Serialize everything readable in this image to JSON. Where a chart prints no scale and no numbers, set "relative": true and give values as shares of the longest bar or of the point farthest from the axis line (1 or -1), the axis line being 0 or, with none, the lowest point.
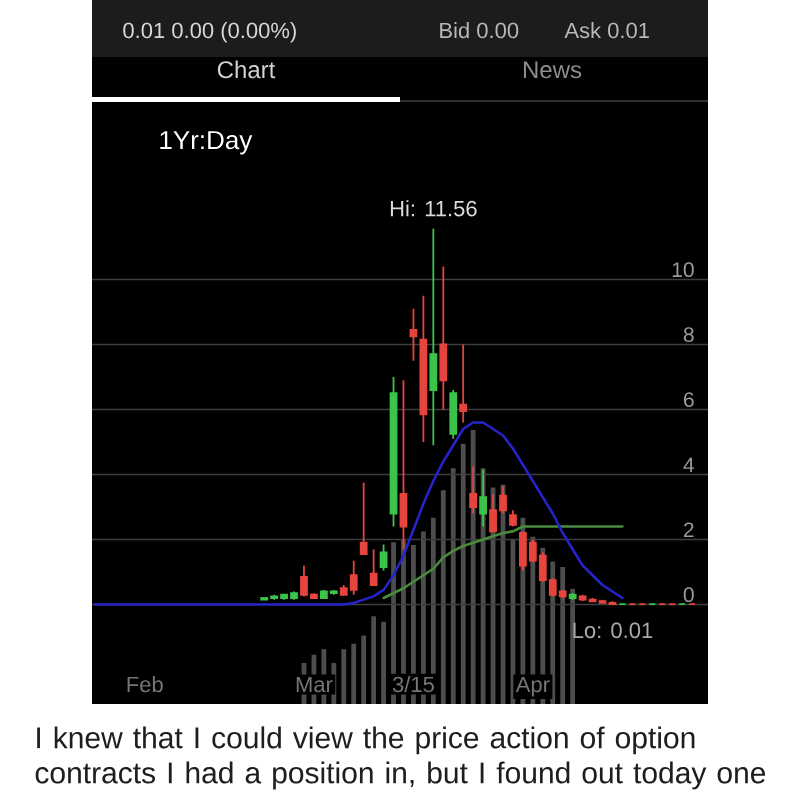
{
  "chart_data": [
    {
      "type": "candlestick",
      "categories": [
        null,
        null,
        null,
        null,
        null,
        "Feb",
        null,
        null,
        null,
        null,
        null,
        null,
        null,
        null,
        null,
        null,
        null,
        null,
        null,
        null,
        null,
        null,
        "Mar",
        null,
        null,
        null,
        null,
        null,
        null,
        null,
        null,
        null,
        "3/15",
        null,
        null,
        null,
        null,
        null,
        null,
        null,
        null,
        null,
        null,
        null,
        "Apr",
        null,
        null,
        null,
        null,
        null,
        null,
        null,
        null,
        null,
        null,
        null,
        null,
        null,
        null,
        null,
        null
      ],
      "ohlc": [
        null,
        null,
        null,
        null,
        null,
        null,
        null,
        null,
        null,
        null,
        null,
        null,
        null,
        null,
        null,
        null,
        null,
        [
          0.15,
          0.2,
          0.15,
          0.2
        ],
        [
          0.2,
          0.3,
          0.15,
          0.25
        ],
        [
          0.2,
          0.3,
          0.15,
          0.3
        ],
        [
          0.2,
          0.4,
          0.15,
          0.35
        ],
        [
          0.85,
          1.2,
          0.25,
          0.3
        ],
        [
          0.3,
          0.35,
          0.2,
          0.2
        ],
        [
          0.2,
          0.45,
          0.2,
          0.4
        ],
        [
          0.35,
          0.45,
          0.3,
          0.4
        ],
        [
          0.5,
          0.6,
          0.3,
          0.3
        ],
        [
          0.9,
          1.35,
          0.3,
          0.45
        ],
        [
          1.9,
          3.75,
          1.55,
          1.55
        ],
        [
          0.95,
          1.7,
          0.6,
          0.6
        ],
        [
          1.15,
          1.85,
          1.05,
          1.6
        ],
        [
          2.8,
          7.0,
          2.4,
          6.5
        ],
        [
          3.4,
          6.9,
          1.7,
          2.4
        ],
        [
          8.45,
          9.1,
          7.5,
          8.25
        ],
        [
          8.15,
          9.5,
          5.0,
          5.85
        ],
        [
          6.6,
          11.56,
          4.9,
          7.7
        ],
        [
          8.0,
          10.4,
          6.0,
          6.9
        ],
        [
          5.25,
          6.6,
          5.1,
          6.5
        ],
        [
          6.15,
          8.0,
          5.6,
          5.95
        ],
        [
          3.4,
          4.25,
          2.8,
          3.0
        ],
        [
          2.8,
          4.15,
          2.4,
          3.3
        ],
        [
          2.9,
          3.4,
          2.25,
          2.25
        ],
        [
          3.35,
          3.65,
          2.8,
          2.9
        ],
        [
          2.75,
          2.9,
          2.4,
          2.45
        ],
        [
          2.2,
          2.25,
          1.05,
          1.2
        ],
        [
          1.9,
          2.0,
          1.3,
          1.35
        ],
        [
          1.5,
          1.6,
          0.7,
          0.75
        ],
        [
          0.75,
          0.8,
          0.25,
          0.3
        ],
        [
          0.4,
          0.45,
          0.2,
          0.25
        ],
        [
          0.2,
          0.35,
          0.15,
          0.3
        ],
        [
          0.25,
          0.3,
          0.1,
          0.15
        ],
        [
          0.15,
          0.2,
          0.1,
          0.1
        ],
        [
          0.1,
          0.15,
          0.05,
          0.05
        ],
        [
          0.05,
          0.1,
          0.01,
          0.01
        ],
        [
          0.01,
          0.01,
          0.01,
          0.01
        ],
        [
          0.01,
          0.01,
          0.01,
          0.01
        ],
        [
          0.01,
          0.01,
          0.01,
          0.01
        ],
        [
          0.01,
          0.01,
          0.01,
          0.01
        ],
        [
          0.01,
          0.01,
          0.01,
          0.01
        ],
        [
          0.01,
          0.01,
          0.01,
          0.01
        ],
        [
          0.01,
          0.01,
          0.01,
          0.01
        ],
        [
          0.01,
          0.01,
          0.01,
          0.01
        ]
      ],
      "colors": [
        null,
        null,
        null,
        null,
        null,
        null,
        null,
        null,
        null,
        null,
        null,
        null,
        null,
        null,
        null,
        null,
        null,
        "#3ac44a",
        "#3ac44a",
        "#3ac44a",
        "#3ac44a",
        "#e5453d",
        "#e5453d",
        "#3ac44a",
        "#3ac44a",
        "#e5453d",
        "#e5453d",
        "#e5453d",
        "#e5453d",
        "#3ac44a",
        "#3ac44a",
        "#e5453d",
        "#e5453d",
        "#e5453d",
        "#3ac44a",
        "#e5453d",
        "#3ac44a",
        "#e5453d",
        "#e5453d",
        "#3ac44a",
        "#e5453d",
        "#e5453d",
        "#e5453d",
        "#e5453d",
        "#e5453d",
        "#e5453d",
        "#e5453d",
        "#e5453d",
        "#3ac44a",
        "#e5453d",
        "#e5453d",
        "#e5453d",
        "#e5453d",
        "#3ac44a",
        "#e5453d",
        "#e5453d",
        "#3ac44a",
        "#e5453d",
        "#e5453d",
        "#3ac44a",
        "#e5453d"
      ],
      "series": [
        {
          "type": "line",
          "color": "#4a8a3c",
          "values": [
            null,
            null,
            null,
            null,
            null,
            null,
            null,
            null,
            null,
            null,
            null,
            null,
            null,
            null,
            null,
            null,
            null,
            null,
            null,
            null,
            null,
            null,
            null,
            null,
            null,
            null,
            null,
            null,
            null,
            0.2,
            0.35,
            0.5,
            0.7,
            0.9,
            1.1,
            1.45,
            1.65,
            1.8,
            1.9,
            2.0,
            2.1,
            2.2,
            2.25,
            2.4,
            2.4,
            2.4,
            2.4,
            2.4,
            2.4,
            2.4,
            2.4,
            2.4,
            2.4,
            2.4,
            null,
            null,
            null,
            null,
            null,
            null,
            null
          ]
        },
        {
          "type": "line",
          "color": "#2424c8",
          "values": [
            0,
            0,
            0,
            0,
            0,
            0,
            0,
            0,
            0,
            0,
            0,
            0,
            0,
            0,
            0,
            0,
            0,
            0,
            0,
            0,
            0,
            0,
            0,
            0,
            0,
            0,
            0.05,
            0.15,
            0.25,
            0.45,
            0.9,
            1.5,
            2.3,
            3.1,
            3.8,
            4.4,
            4.9,
            5.4,
            5.6,
            5.6,
            5.4,
            5.2,
            4.8,
            4.3,
            3.8,
            3.3,
            2.8,
            2.2,
            1.7,
            1.2,
            0.9,
            0.6,
            0.4,
            0.2,
            null,
            null,
            null,
            null,
            null,
            null,
            null
          ]
        }
      ],
      "ylim": [
        -3,
        13
      ],
      "yticks": [
        0,
        2,
        4,
        6,
        8,
        10
      ],
      "grid": "y",
      "annotations": [
        "0.01 0.00 (0.00%)",
        "Bid 0.00",
        "Ask 0.01",
        "Chart",
        "News",
        "1Yr:Day",
        {
          "text": "Hi: 11.56",
          "y": 11.56
        },
        {
          "text": "Lo: 0.01",
          "y": 0.01
        },
        "I knew that I could view the price action of option contracts I had a position in, but I found out today one"
      ]
    },
    {
      "type": "bar",
      "relative": true,
      "color": "#4d4d4d",
      "categories": [
        null,
        null,
        null,
        null,
        null,
        null,
        null,
        null,
        null,
        null,
        null,
        null,
        null,
        null,
        null,
        null,
        null,
        null,
        null,
        null,
        null,
        null,
        null,
        null,
        null,
        null,
        null,
        null,
        null,
        null,
        null,
        null,
        null,
        null,
        null,
        null,
        null,
        null,
        null,
        null,
        null,
        null,
        null,
        null,
        null,
        null,
        null,
        null,
        null,
        null,
        null,
        null,
        null,
        null,
        null,
        null,
        null,
        null,
        null,
        null,
        null
      ],
      "values": [
        null,
        null,
        null,
        null,
        null,
        null,
        null,
        null,
        null,
        null,
        null,
        null,
        null,
        null,
        null,
        null,
        null,
        null,
        null,
        null,
        null,
        0.15,
        0.18,
        0.2,
        0.15,
        0.2,
        0.22,
        0.25,
        0.32,
        0.3,
        0.59,
        0.6,
        0.58,
        0.63,
        0.68,
        0.78,
        0.86,
        0.95,
        1,
        0.86,
        0.79,
        0.8,
        0.6,
        0.68,
        0.61,
        0.57,
        0.52,
        0.5,
        0.42,
        null,
        null,
        null,
        null,
        null,
        null,
        null,
        null,
        null,
        null,
        null,
        null
      ]
    }
  ]
}
